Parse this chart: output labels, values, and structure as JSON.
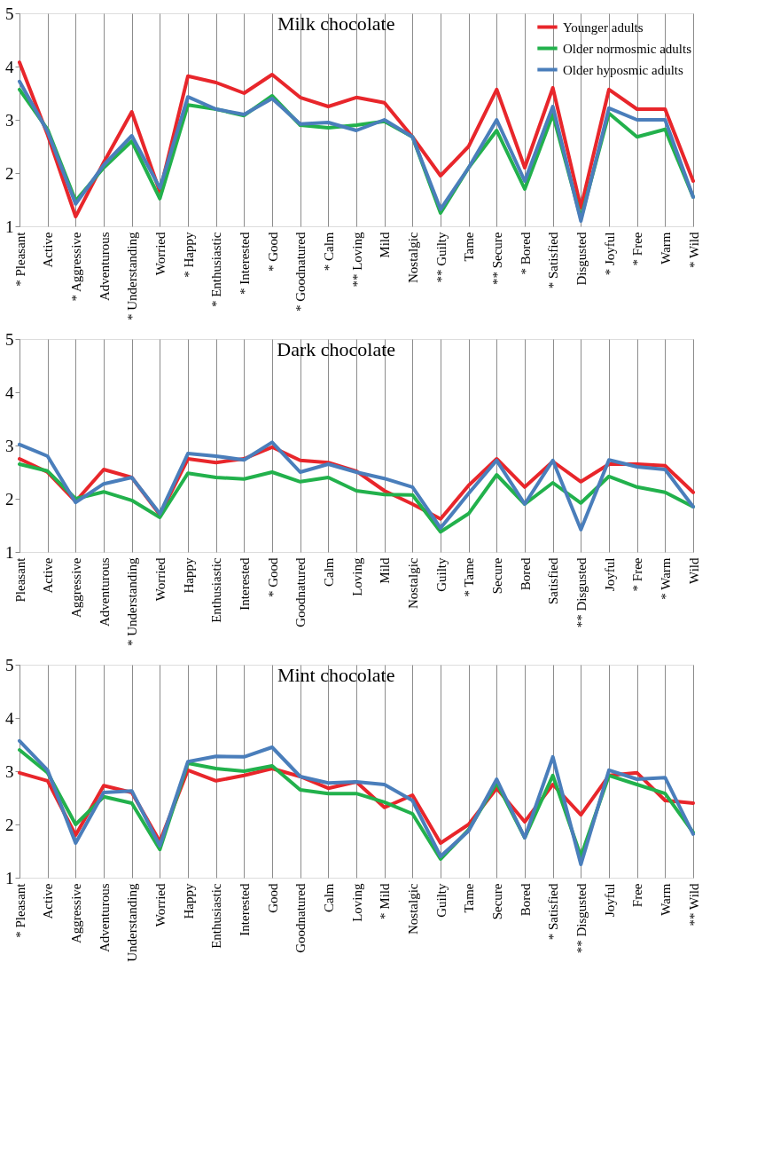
{
  "chart_data": [
    {
      "type": "line",
      "title": "Milk chocolate",
      "categories": [
        "* Pleasant",
        "Active",
        "* Aggressive",
        "Adventurous",
        "* Understanding",
        "Worried",
        "* Happy",
        "* Enthusiastic",
        "* Interested",
        "* Good",
        "* Goodnatured",
        "* Calm",
        "** Loving",
        "Mild",
        "Nostalgic",
        "** Guilty",
        "Tame",
        "** Secure",
        "* Bored",
        "* Satisfied",
        "Disgusted",
        "* Joyful",
        "* Free",
        "Warm",
        "* Wild"
      ],
      "ylim": [
        1,
        5
      ],
      "yticks": [
        1,
        2,
        3,
        4,
        5
      ],
      "grid": "x",
      "legend": "top right",
      "line_style": "solid",
      "marker": "none",
      "series": [
        {
          "name": "Younger adults",
          "color": "#e8262b",
          "values": [
            4.08,
            2.72,
            1.18,
            2.2,
            3.15,
            1.65,
            3.82,
            3.7,
            3.5,
            3.85,
            3.42,
            3.25,
            3.42,
            3.32,
            2.68,
            1.95,
            2.5,
            3.57,
            2.1,
            3.6,
            1.35,
            3.57,
            3.2,
            3.2,
            1.85
          ]
        },
        {
          "name": "Older normosmic adults",
          "color": "#22b14c",
          "values": [
            3.57,
            2.82,
            1.48,
            2.1,
            2.6,
            1.52,
            3.28,
            3.2,
            3.08,
            3.45,
            2.9,
            2.85,
            2.9,
            2.97,
            2.68,
            1.25,
            2.1,
            2.8,
            1.7,
            3.1,
            1.15,
            3.12,
            2.68,
            2.82,
            1.55
          ]
        },
        {
          "name": "Older hyposmic adults",
          "color": "#4a7ebb",
          "values": [
            3.72,
            2.78,
            1.42,
            2.15,
            2.7,
            1.72,
            3.43,
            3.2,
            3.1,
            3.4,
            2.92,
            2.95,
            2.8,
            3.0,
            2.68,
            1.32,
            2.1,
            3.0,
            1.85,
            3.25,
            1.1,
            3.22,
            3.0,
            3.0,
            1.55
          ]
        }
      ]
    },
    {
      "type": "line",
      "title": "Dark chocolate",
      "categories": [
        "Pleasant",
        "Active",
        "Aggressive",
        "Adventurous",
        "* Understanding",
        "Worried",
        "Happy",
        "Enthusiastic",
        "Interested",
        "* Good",
        "Goodnatured",
        "Calm",
        "Loving",
        "Mild",
        "Nostalgic",
        "Guilty",
        "* Tame",
        "Secure",
        "Bored",
        "Satisfied",
        "** Disgusted",
        "Joyful",
        "* Free",
        "* Warm",
        "Wild"
      ],
      "ylim": [
        1,
        5
      ],
      "yticks": [
        1,
        2,
        3,
        4,
        5
      ],
      "grid": "x",
      "legend": "top right",
      "line_style": "solid",
      "marker": "none",
      "series": [
        {
          "name": "Younger adults",
          "color": "#e8262b",
          "values": [
            2.75,
            2.5,
            1.95,
            2.55,
            2.4,
            1.7,
            2.75,
            2.68,
            2.75,
            2.97,
            2.72,
            2.68,
            2.52,
            2.15,
            1.9,
            1.62,
            2.25,
            2.75,
            2.22,
            2.7,
            2.32,
            2.65,
            2.65,
            2.62,
            2.12
          ]
        },
        {
          "name": "Older normosmic adults",
          "color": "#22b14c",
          "values": [
            2.65,
            2.52,
            2.0,
            2.13,
            1.97,
            1.65,
            2.48,
            2.4,
            2.37,
            2.5,
            2.32,
            2.4,
            2.15,
            2.08,
            2.07,
            1.38,
            1.72,
            2.45,
            1.9,
            2.3,
            1.92,
            2.42,
            2.22,
            2.12,
            1.85
          ]
        },
        {
          "name": "Older hyposmic adults",
          "color": "#4a7ebb",
          "values": [
            3.02,
            2.8,
            1.93,
            2.28,
            2.4,
            1.72,
            2.85,
            2.8,
            2.73,
            3.06,
            2.5,
            2.65,
            2.5,
            2.38,
            2.22,
            1.45,
            2.1,
            2.72,
            1.9,
            2.72,
            1.42,
            2.73,
            2.6,
            2.55,
            1.85
          ]
        }
      ]
    },
    {
      "type": "line",
      "title": "Mint chocolate",
      "categories": [
        "* Pleasant",
        "Active",
        "Aggressive",
        "Adventurous",
        "Understanding",
        "Worried",
        "Happy",
        "Enthusiastic",
        "Interested",
        "Good",
        "Goodnatured",
        "Calm",
        "Loving",
        "* Mild",
        "Nostalgic",
        "Guilty",
        "Tame",
        "Secure",
        "Bored",
        "* Satisfied",
        "** Disgusted",
        "Joyful",
        "Free",
        "Warm",
        "** Wild"
      ],
      "ylim": [
        1,
        5
      ],
      "yticks": [
        1,
        2,
        3,
        4,
        5
      ],
      "grid": "x",
      "legend": "top right",
      "line_style": "solid",
      "marker": "none",
      "series": [
        {
          "name": "Younger adults",
          "color": "#e8262b",
          "values": [
            2.97,
            2.82,
            1.8,
            2.73,
            2.6,
            1.68,
            3.02,
            2.82,
            2.92,
            3.05,
            2.9,
            2.68,
            2.8,
            2.32,
            2.55,
            1.65,
            2.0,
            2.68,
            2.05,
            2.75,
            2.18,
            2.92,
            2.97,
            2.45,
            2.4
          ]
        },
        {
          "name": "Older normosmic adults",
          "color": "#22b14c",
          "values": [
            3.4,
            2.97,
            2.0,
            2.52,
            2.4,
            1.53,
            3.15,
            3.05,
            3.0,
            3.1,
            2.65,
            2.58,
            2.58,
            2.42,
            2.2,
            1.35,
            1.9,
            2.78,
            1.75,
            2.92,
            1.4,
            2.92,
            2.75,
            2.58,
            1.85
          ]
        },
        {
          "name": "Older hyposmic adults",
          "color": "#4a7ebb",
          "values": [
            3.57,
            3.02,
            1.65,
            2.6,
            2.63,
            1.6,
            3.18,
            3.28,
            3.27,
            3.45,
            2.9,
            2.78,
            2.8,
            2.75,
            2.45,
            1.4,
            1.88,
            2.85,
            1.75,
            3.27,
            1.25,
            3.02,
            2.85,
            2.88,
            1.82
          ]
        }
      ]
    }
  ]
}
